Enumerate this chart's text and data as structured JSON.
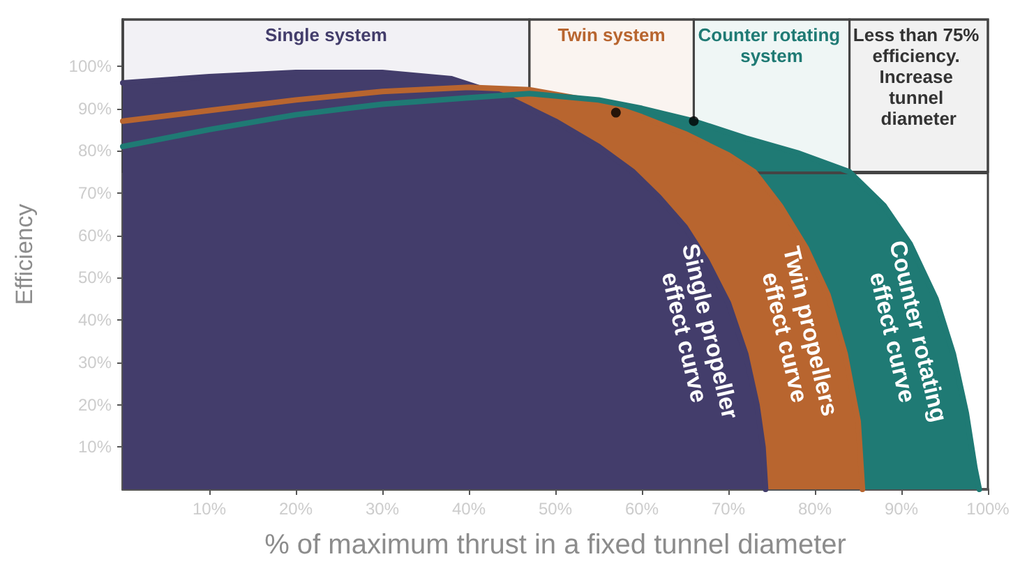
{
  "chart_data": {
    "type": "area",
    "xlabel": "% of maximum thrust in a fixed tunnel diameter",
    "ylabel": "Efficiency",
    "series": [
      {
        "color": "#433d6b",
        "x": [
          0,
          10,
          20,
          30,
          38,
          44,
          50,
          55,
          59,
          62,
          65,
          67.5,
          70,
          72,
          73.3,
          74,
          74.3
        ],
        "values": [
          96,
          97.5,
          98.5,
          98.5,
          97,
          93,
          87,
          81,
          75,
          69,
          62,
          54,
          44,
          32,
          20,
          10,
          0
        ]
      },
      {
        "color": "#b8652f",
        "x": [
          0,
          10,
          20,
          30,
          40,
          47,
          55,
          60,
          65,
          70,
          73,
          76,
          79,
          81.5,
          83.5,
          85,
          85.5
        ],
        "values": [
          87,
          89.5,
          92,
          94,
          95,
          94.4,
          91.5,
          88,
          84,
          79,
          75,
          67,
          57,
          46,
          32,
          16,
          0
        ]
      },
      {
        "color": "#1f7a74",
        "x": [
          0,
          10,
          20,
          30,
          40,
          47,
          55,
          60,
          66,
          72,
          78,
          84,
          88,
          91,
          94,
          96,
          97.5,
          98.5,
          99
        ],
        "values": [
          81,
          85,
          88.5,
          91,
          92.5,
          93.5,
          92,
          90,
          87,
          83,
          79.5,
          75,
          67,
          58,
          45,
          32,
          18,
          5,
          0
        ]
      },
      {
        "type": "scatter",
        "color": "#000000",
        "x": [
          57,
          66
        ],
        "values": [
          89,
          87
        ]
      }
    ],
    "xlim": [
      0,
      100
    ],
    "ylim": [
      0,
      111
    ],
    "xticks": [
      {
        "value": 10,
        "label": "10%"
      },
      {
        "value": 20,
        "label": "20%"
      },
      {
        "value": 30,
        "label": "30%"
      },
      {
        "value": 40,
        "label": "40%"
      },
      {
        "value": 50,
        "label": "50%"
      },
      {
        "value": 60,
        "label": "60%"
      },
      {
        "value": 70,
        "label": "70%"
      },
      {
        "value": 80,
        "label": "80%"
      },
      {
        "value": 90,
        "label": "90%"
      },
      {
        "value": 100,
        "label": "100%"
      }
    ],
    "yticks": [
      {
        "value": 10,
        "label": "10%"
      },
      {
        "value": 20,
        "label": "20%"
      },
      {
        "value": 30,
        "label": "30%"
      },
      {
        "value": 40,
        "label": "40%"
      },
      {
        "value": 50,
        "label": "50%"
      },
      {
        "value": 60,
        "label": "60%"
      },
      {
        "value": 70,
        "label": "70%"
      },
      {
        "value": 80,
        "label": "80%"
      },
      {
        "value": 90,
        "label": "90%"
      },
      {
        "value": 100,
        "label": "100%"
      }
    ],
    "ref_lines": [
      {
        "axis": "y",
        "value": 75,
        "color": "#444444"
      }
    ],
    "bands": [
      {
        "axis": "x",
        "from": 0,
        "to": 47,
        "label": "Single system",
        "color": "#433d6b"
      },
      {
        "axis": "x",
        "from": 47,
        "to": 66,
        "label": "Twin system",
        "color": "#b8652f"
      },
      {
        "axis": "x",
        "from": 66,
        "to": 84,
        "label": "Counter rotating system",
        "color": "#1f7a74"
      },
      {
        "axis": "x",
        "from": 84,
        "to": 100,
        "label": "Less than 75% efficiency. Increase tunnel diameter",
        "color": "#333333"
      }
    ],
    "annotations": [
      "Single propeller effect curve",
      "Twin propellers effect curve",
      "Counter rotating effect curve"
    ],
    "grid": false
  }
}
